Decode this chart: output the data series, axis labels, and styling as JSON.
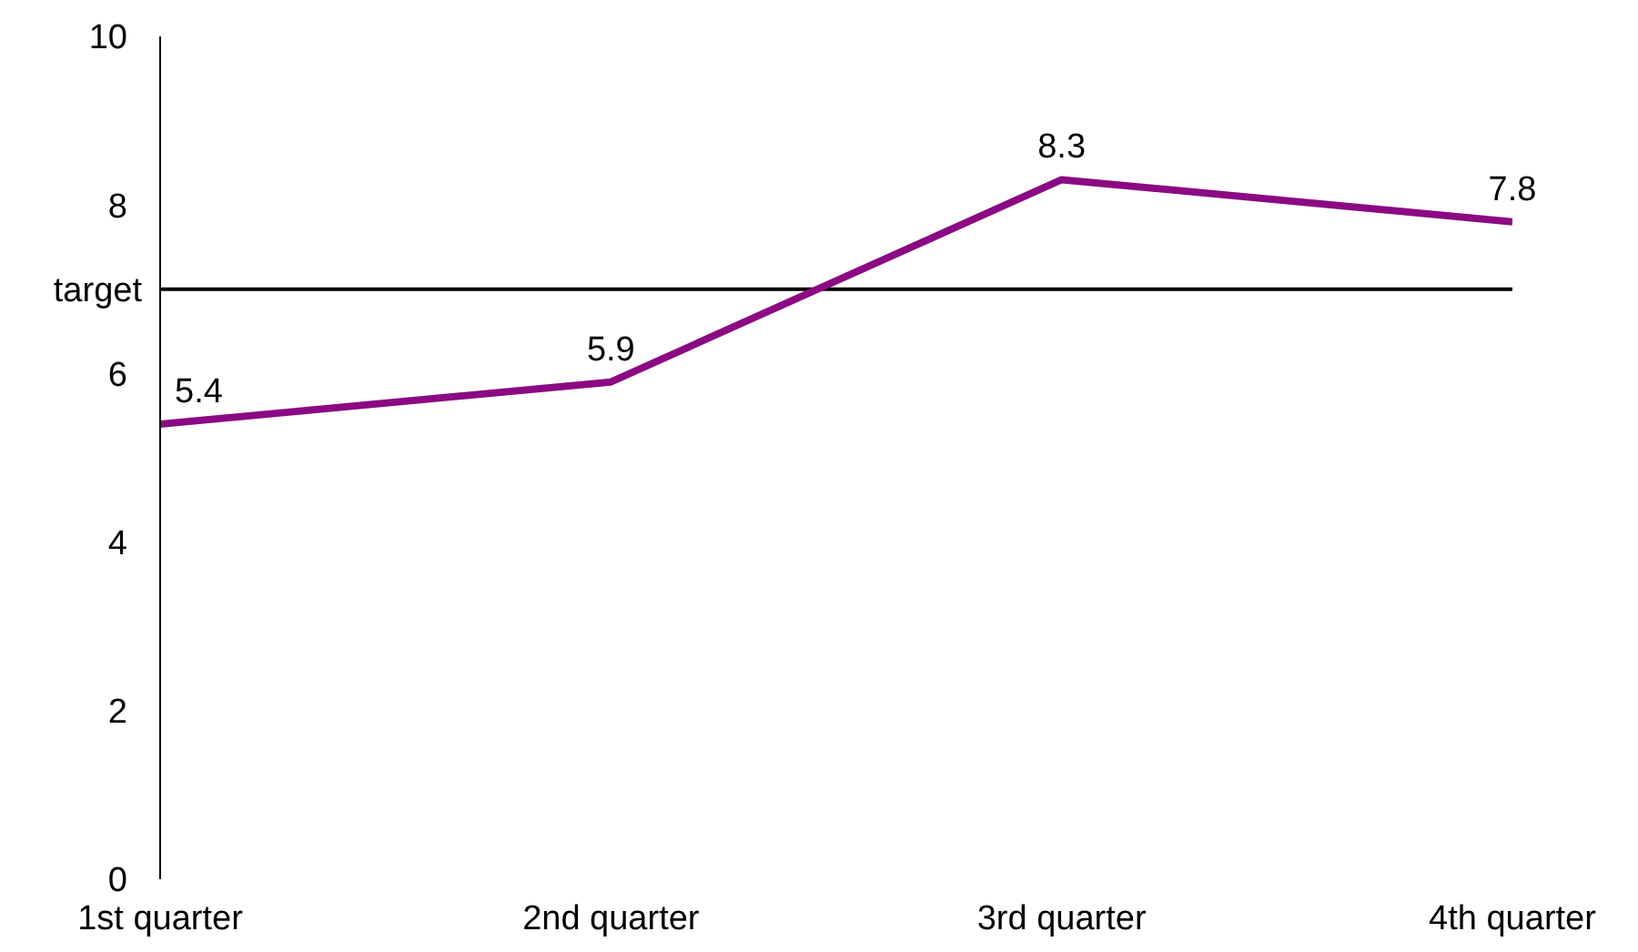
{
  "chart_data": {
    "type": "line",
    "categories": [
      "1st quarter",
      "2nd quarter",
      "3rd quarter",
      "4th quarter"
    ],
    "series": [
      {
        "color": "#8b0a83",
        "values": [
          5.4,
          5.9,
          8.3,
          7.8
        ]
      }
    ],
    "ylim": [
      0,
      10
    ],
    "yticks": [
      0,
      2,
      4,
      6,
      8,
      10
    ],
    "grid": false,
    "legend": false,
    "marker": "none",
    "line_style": "solid",
    "data_labels": true,
    "ref_lines": [
      {
        "axis": "y",
        "value": 7,
        "label": "target",
        "color": "#000000"
      }
    ]
  }
}
